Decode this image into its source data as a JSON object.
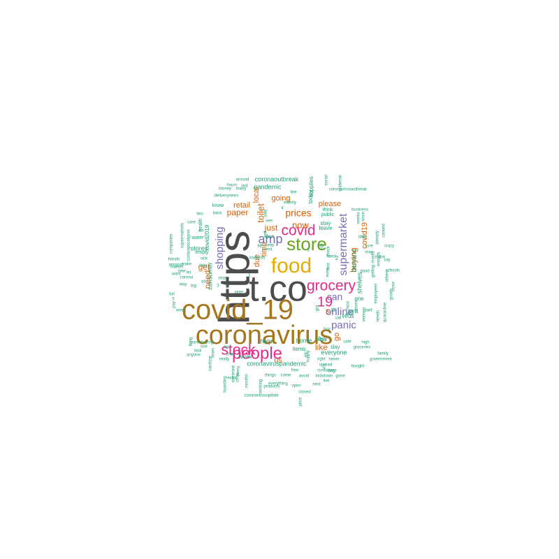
{
  "palette": {
    "dark_gray": "#4d4d4d",
    "brown": "#a6761d",
    "mustard": "#e6ab02",
    "magenta": "#e7298a",
    "green": "#66a61e",
    "purple": "#7570b3",
    "orange": "#d95f02",
    "teal": "#1b9e77"
  },
  "words": [
    {
      "text": "https",
      "color": "dark_gray"
    },
    {
      "text": "t.co",
      "color": "dark_gray"
    },
    {
      "text": "coronavirus",
      "color": "brown"
    },
    {
      "text": "covid_19",
      "color": "brown"
    },
    {
      "text": "food",
      "color": "mustard"
    },
    {
      "text": "store",
      "color": "green"
    },
    {
      "text": "people",
      "color": "magenta"
    },
    {
      "text": "grocery",
      "color": "magenta"
    },
    {
      "text": "stock",
      "color": "magenta"
    },
    {
      "text": "covid",
      "color": "magenta"
    },
    {
      "text": "19",
      "color": "magenta"
    },
    {
      "text": "amp",
      "color": "purple"
    },
    {
      "text": "supermarket",
      "color": "purple"
    },
    {
      "text": "shopping",
      "color": "purple"
    },
    {
      "text": "online",
      "color": "purple"
    },
    {
      "text": "panic",
      "color": "purple"
    },
    {
      "text": "can",
      "color": "purple"
    },
    {
      "text": "prices",
      "color": "orange"
    },
    {
      "text": "now",
      "color": "orange"
    },
    {
      "text": "toilet",
      "color": "orange"
    },
    {
      "text": "paper",
      "color": "orange"
    },
    {
      "text": "just",
      "color": "orange"
    },
    {
      "text": "get",
      "color": "orange"
    },
    {
      "text": "need",
      "color": "orange"
    },
    {
      "text": "buying",
      "color": "orange"
    },
    {
      "text": "covid19",
      "color": "orange"
    },
    {
      "text": "like",
      "color": "orange"
    },
    {
      "text": "s",
      "color": "orange"
    },
    {
      "text": "please",
      "color": "orange"
    },
    {
      "text": "going",
      "color": "orange"
    },
    {
      "text": "local",
      "color": "orange"
    },
    {
      "text": "retail",
      "color": "orange"
    },
    {
      "text": "time",
      "color": "orange"
    },
    {
      "text": "due",
      "color": "orange"
    },
    {
      "text": "go",
      "color": "orange"
    },
    {
      "text": "us",
      "color": "orange"
    },
    {
      "text": "coronaoutbreak",
      "color": "teal"
    },
    {
      "text": "pandemic",
      "color": "teal"
    },
    {
      "text": "coronaviruspandemic",
      "color": "teal"
    },
    {
      "text": "home",
      "color": "teal"
    },
    {
      "text": "everyone",
      "color": "teal"
    },
    {
      "text": "work",
      "color": "teal"
    },
    {
      "text": "help",
      "color": "teal"
    },
    {
      "text": "demand",
      "color": "teal"
    },
    {
      "text": "shelves",
      "color": "teal"
    },
    {
      "text": "consumer",
      "color": "teal"
    },
    {
      "text": "stores",
      "color": "teal"
    },
    {
      "text": "covid2019",
      "color": "teal"
    },
    {
      "text": "supplies",
      "color": "teal"
    },
    {
      "text": "today",
      "color": "teal"
    },
    {
      "text": "one",
      "color": "teal"
    },
    {
      "text": "buy",
      "color": "teal"
    },
    {
      "text": "virus",
      "color": "teal"
    },
    {
      "text": "items",
      "color": "teal"
    },
    {
      "text": "day",
      "color": "teal"
    },
    {
      "text": "also",
      "color": "teal"
    },
    {
      "text": "stay",
      "color": "teal"
    },
    {
      "text": "leave",
      "color": "teal"
    },
    {
      "text": "think",
      "color": "teal"
    },
    {
      "text": "public",
      "color": "teal"
    },
    {
      "text": "know",
      "color": "teal"
    },
    {
      "text": "health",
      "color": "teal"
    },
    {
      "text": "empty",
      "color": "teal"
    },
    {
      "text": "water",
      "color": "teal"
    },
    {
      "text": "money",
      "color": "teal"
    },
    {
      "text": "many",
      "color": "teal"
    },
    {
      "text": "hours",
      "color": "teal"
    },
    {
      "text": "last",
      "color": "teal"
    },
    {
      "text": "around",
      "color": "teal"
    },
    {
      "text": "deliverynews",
      "color": "teal"
    },
    {
      "text": "coronavirusoutbreak",
      "color": "teal"
    },
    {
      "text": "business",
      "color": "teal"
    },
    {
      "text": "weeks",
      "color": "teal"
    },
    {
      "text": "since",
      "color": "teal"
    },
    {
      "text": "already",
      "color": "teal"
    },
    {
      "text": "canned",
      "color": "teal"
    },
    {
      "text": "crazy",
      "color": "teal"
    },
    {
      "text": "schools",
      "color": "teal"
    },
    {
      "text": "masks",
      "color": "teal"
    },
    {
      "text": "say",
      "color": "teal"
    },
    {
      "text": "thank",
      "color": "teal"
    },
    {
      "text": "enough",
      "color": "teal"
    },
    {
      "text": "may",
      "color": "teal"
    },
    {
      "text": "sure",
      "color": "teal"
    },
    {
      "text": "good",
      "color": "teal"
    },
    {
      "text": "days",
      "color": "teal"
    },
    {
      "text": "hand",
      "color": "teal"
    },
    {
      "text": "still",
      "color": "teal"
    },
    {
      "text": "even",
      "color": "teal"
    },
    {
      "text": "call",
      "color": "teal"
    },
    {
      "text": "well",
      "color": "teal"
    },
    {
      "text": "safe",
      "color": "teal"
    },
    {
      "text": "high",
      "color": "teal"
    },
    {
      "text": "groceries",
      "color": "teal"
    },
    {
      "text": "family",
      "color": "teal"
    },
    {
      "text": "government",
      "color": "teal"
    },
    {
      "text": "bought",
      "color": "teal"
    },
    {
      "text": "next",
      "color": "teal"
    },
    {
      "text": "gone",
      "color": "teal"
    },
    {
      "text": "live",
      "color": "teal"
    },
    {
      "text": "long",
      "color": "teal"
    },
    {
      "text": "never",
      "color": "teal"
    },
    {
      "text": "spread",
      "color": "teal"
    },
    {
      "text": "right",
      "color": "teal"
    },
    {
      "text": "customers",
      "color": "teal"
    },
    {
      "text": "lockdown",
      "color": "teal"
    },
    {
      "text": "avoid",
      "color": "teal"
    },
    {
      "text": "come",
      "color": "teal"
    },
    {
      "text": "open",
      "color": "teal"
    },
    {
      "text": "closed",
      "color": "teal"
    },
    {
      "text": "things",
      "color": "teal"
    },
    {
      "text": "everything",
      "color": "teal"
    },
    {
      "text": "coronavirusupdate",
      "color": "teal"
    },
    {
      "text": "working",
      "color": "teal"
    },
    {
      "text": "products",
      "color": "teal"
    },
    {
      "text": "extra",
      "color": "teal"
    },
    {
      "text": "really",
      "color": "teal"
    },
    {
      "text": "shop",
      "color": "teal"
    },
    {
      "text": "sanitizer",
      "color": "teal"
    },
    {
      "text": "use",
      "color": "teal"
    },
    {
      "text": "anyone",
      "color": "teal"
    },
    {
      "text": "panicbuying",
      "color": "teal"
    },
    {
      "text": "week",
      "color": "teal"
    },
    {
      "text": "pay",
      "color": "teal"
    },
    {
      "text": "full",
      "color": "teal"
    },
    {
      "text": "way",
      "color": "teal"
    },
    {
      "text": "big",
      "color": "teal"
    },
    {
      "text": "corona",
      "color": "teal"
    },
    {
      "text": "want",
      "color": "teal"
    },
    {
      "text": "new",
      "color": "teal"
    },
    {
      "text": "market",
      "color": "teal"
    },
    {
      "text": "hands",
      "color": "teal"
    },
    {
      "text": "companies",
      "color": "teal"
    },
    {
      "text": "supermarkets",
      "color": "teal"
    },
    {
      "text": "coronapocalypse",
      "color": "teal"
    },
    {
      "text": "two",
      "color": "teal"
    },
    {
      "text": "back",
      "color": "teal"
    },
    {
      "text": "lot",
      "color": "teal"
    },
    {
      "text": "care",
      "color": "teal"
    },
    {
      "text": "amazon",
      "color": "teal"
    },
    {
      "text": "make",
      "color": "teal"
    },
    {
      "text": "sick",
      "color": "teal"
    },
    {
      "text": "take",
      "color": "teal"
    },
    {
      "text": "stop",
      "color": "teal"
    },
    {
      "text": "seen",
      "color": "teal"
    },
    {
      "text": "went",
      "color": "teal"
    },
    {
      "text": "keep",
      "color": "teal"
    },
    {
      "text": "see",
      "color": "teal"
    },
    {
      "text": "don",
      "color": "teal"
    },
    {
      "text": "line",
      "color": "teal"
    },
    {
      "text": "elderly",
      "color": "teal"
    },
    {
      "text": "first",
      "color": "teal"
    },
    {
      "text": "look",
      "color": "teal"
    },
    {
      "text": "thing",
      "color": "teal"
    },
    {
      "text": "free",
      "color": "teal"
    },
    {
      "text": "world",
      "color": "teal"
    },
    {
      "text": "paid",
      "color": "teal"
    },
    {
      "text": "workers",
      "color": "teal"
    },
    {
      "text": "goods",
      "color": "teal"
    },
    {
      "text": "quarantine",
      "color": "teal"
    },
    {
      "text": "needs",
      "color": "teal"
    },
    {
      "text": "employees",
      "color": "teal"
    },
    {
      "text": "getting",
      "color": "teal"
    },
    {
      "text": "others",
      "color": "teal"
    },
    {
      "text": "close",
      "color": "teal"
    },
    {
      "text": "social",
      "color": "teal"
    },
    {
      "text": "outbreak",
      "color": "teal"
    },
    {
      "text": "supply",
      "color": "teal"
    },
    {
      "text": "price",
      "color": "teal"
    },
    {
      "text": "months",
      "color": "teal"
    },
    {
      "text": "someone",
      "color": "teal"
    },
    {
      "text": "every",
      "color": "teal"
    },
    {
      "text": "crisis",
      "color": "teal"
    },
    {
      "text": "hoarding",
      "color": "teal"
    },
    {
      "text": "times",
      "color": "teal"
    },
    {
      "text": "etc",
      "color": "teal"
    },
    {
      "text": "via",
      "color": "teal"
    },
    {
      "text": "got",
      "color": "teal"
    },
    {
      "text": "food",
      "color": "teal"
    },
    {
      "text": "self",
      "color": "teal"
    },
    {
      "text": "said",
      "color": "teal"
    },
    {
      "text": "lowtrash",
      "color": "teal"
    },
    {
      "text": "oil",
      "color": "teal"
    },
    {
      "text": "let",
      "color": "teal"
    },
    {
      "text": "buy",
      "color": "teal"
    },
    {
      "text": "find",
      "color": "teal"
    },
    {
      "text": "check",
      "color": "teal"
    },
    {
      "text": "passes",
      "color": "teal"
    },
    {
      "text": "2",
      "color": "teal"
    },
    {
      "text": "1",
      "color": "teal"
    },
    {
      "text": "4",
      "color": "teal"
    },
    {
      "text": "3",
      "color": "teal"
    },
    {
      "text": "5",
      "color": "teal"
    },
    {
      "text": "6",
      "color": "teal"
    },
    {
      "text": "re",
      "color": "teal"
    },
    {
      "text": "m",
      "color": "teal"
    },
    {
      "text": "t",
      "color": "teal"
    }
  ]
}
